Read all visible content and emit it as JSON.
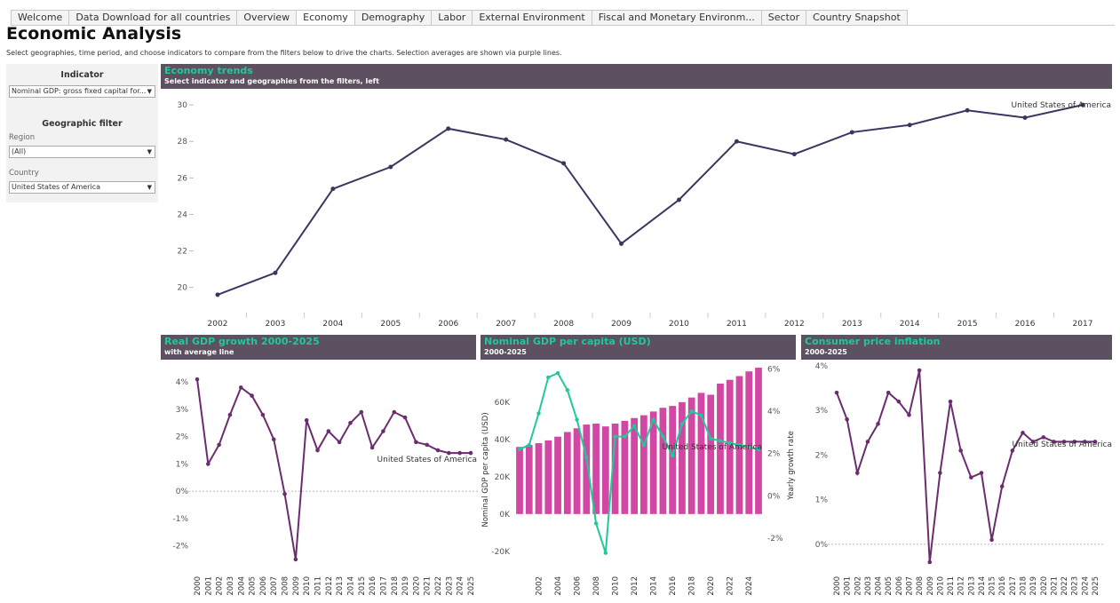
{
  "tabs": [
    "Welcome",
    "Data Download for all countries",
    "Overview",
    "Economy",
    "Demography",
    "Labor",
    "External Environment",
    "Fiscal and Monetary Environm...",
    "Sector",
    "Country Snapshot"
  ],
  "active_tab": "Economy",
  "page": {
    "title": "Economic Analysis",
    "subtitle": "Select geographies, time period, and choose indicators to compare from the filters below to drive the charts. Selection averages are shown via purple lines."
  },
  "filters": {
    "indicator_heading": "Indicator",
    "indicator_value": "Nominal GDP: gross fixed capital for...",
    "geo_heading": "Geographic filter",
    "region_label": "Region",
    "region_value": "(All)",
    "country_label": "Country",
    "country_value": "United States of America"
  },
  "colors": {
    "header_bg": "#5c5061",
    "accent": "#20c997",
    "line": "#3d3560",
    "purple": "#6b2d6e",
    "bar": "#d147a3"
  },
  "panels": {
    "trends": {
      "title": "Economy trends",
      "subtitle": "Select indicator and geographies from the filters, left"
    },
    "growth": {
      "title": "Real GDP growth 2000-2025",
      "subtitle": "with average line"
    },
    "gdppc": {
      "title": "Nominal GDP per capita (USD)",
      "subtitle": "2000-2025"
    },
    "cpi": {
      "title": "Consumer price inflation",
      "subtitle": "2000-2025"
    }
  },
  "chart_data": [
    {
      "type": "line",
      "name": "trends",
      "x": [
        "2002",
        "2003",
        "2004",
        "2005",
        "2006",
        "2007",
        "2008",
        "2009",
        "2010",
        "2011",
        "2012",
        "2013",
        "2014",
        "2015",
        "2016",
        "2017"
      ],
      "values": [
        19.6,
        20.8,
        25.4,
        26.6,
        28.7,
        28.1,
        26.8,
        22.4,
        24.8,
        28.0,
        27.3,
        28.5,
        28.9,
        29.7,
        29.3,
        30.0
      ],
      "y_ticks": [
        "20",
        "22",
        "24",
        "26",
        "28",
        "30"
      ],
      "ylim": [
        19.4,
        30.2
      ],
      "label": "United States of America"
    },
    {
      "type": "line",
      "name": "growth",
      "x": [
        "2000",
        "2001",
        "2002",
        "2003",
        "2004",
        "2005",
        "2006",
        "2007",
        "2008",
        "2009",
        "2010",
        "2011",
        "2012",
        "2013",
        "2014",
        "2015",
        "2016",
        "2017",
        "2018",
        "2019",
        "2020",
        "2021",
        "2022",
        "2023",
        "2024",
        "2025"
      ],
      "values": [
        4.1,
        1.0,
        1.7,
        2.8,
        3.8,
        3.5,
        2.8,
        1.9,
        -0.1,
        -2.5,
        2.6,
        1.5,
        2.2,
        1.8,
        2.5,
        2.9,
        1.6,
        2.2,
        2.9,
        2.7,
        1.8,
        1.7,
        1.5,
        1.4,
        1.4,
        1.4
      ],
      "y_ticks": [
        "4%",
        "3%",
        "2%",
        "1%",
        "0%",
        "-1%",
        "-2%"
      ],
      "ylim": [
        -2.6,
        4.3
      ],
      "label": "United States of America"
    },
    {
      "type": "bar",
      "name": "gdppc",
      "x": [
        "2000",
        "2001",
        "2002",
        "2003",
        "2004",
        "2005",
        "2006",
        "2007",
        "2008",
        "2009",
        "2010",
        "2011",
        "2012",
        "2013",
        "2014",
        "2015",
        "2016",
        "2017",
        "2018",
        "2019",
        "2020",
        "2021",
        "2022",
        "2023",
        "2024",
        "2025"
      ],
      "x_ticks": [
        "2002",
        "2004",
        "2006",
        "2008",
        "2010",
        "2012",
        "2014",
        "2016",
        "2018",
        "2020",
        "2022",
        "2024"
      ],
      "values": [
        36000,
        37000,
        38000,
        39500,
        41500,
        44000,
        46000,
        48000,
        48500,
        47000,
        48500,
        50000,
        51500,
        53000,
        55000,
        57000,
        58000,
        60000,
        62500,
        65000,
        64000,
        70000,
        72000,
        74000,
        76500,
        78500
      ],
      "growth_rate": [
        2.2,
        2.4,
        3.9,
        5.6,
        5.8,
        5.0,
        3.6,
        1.8,
        -1.3,
        -2.7,
        2.8,
        2.8,
        3.3,
        2.4,
        3.6,
        2.8,
        1.9,
        3.4,
        4.0,
        3.8,
        2.7,
        2.6,
        2.5,
        2.4,
        2.3,
        2.2
      ],
      "y_ticks": [
        "-20K",
        "0K",
        "20K",
        "40K",
        "60K"
      ],
      "ylim": [
        -22000,
        79000
      ],
      "y2_ticks": [
        "-2%",
        "0%",
        "2%",
        "4%",
        "6%"
      ],
      "y2lim": [
        -2.8,
        6.1
      ],
      "ylabel": "Nominal GDP per capita (USD)",
      "y2label": "Yearly growth rate",
      "label": "United States of America"
    },
    {
      "type": "line",
      "name": "cpi",
      "x": [
        "2000",
        "2001",
        "2002",
        "2003",
        "2004",
        "2005",
        "2006",
        "2007",
        "2008",
        "2009",
        "2010",
        "2011",
        "2012",
        "2013",
        "2014",
        "2015",
        "2016",
        "2017",
        "2018",
        "2019",
        "2020",
        "2021",
        "2022",
        "2023",
        "2024",
        "2025"
      ],
      "values": [
        3.4,
        2.8,
        1.6,
        2.3,
        2.7,
        3.4,
        3.2,
        2.9,
        3.9,
        -0.4,
        1.6,
        3.2,
        2.1,
        1.5,
        1.6,
        0.1,
        1.3,
        2.1,
        2.5,
        2.3,
        2.4,
        2.3,
        2.3,
        2.3,
        2.3,
        2.3
      ],
      "y_ticks": [
        "4%",
        "3%",
        "2%",
        "1%",
        "0%"
      ],
      "ylim": [
        -0.4,
        4.0
      ],
      "label": "United States of America"
    }
  ]
}
